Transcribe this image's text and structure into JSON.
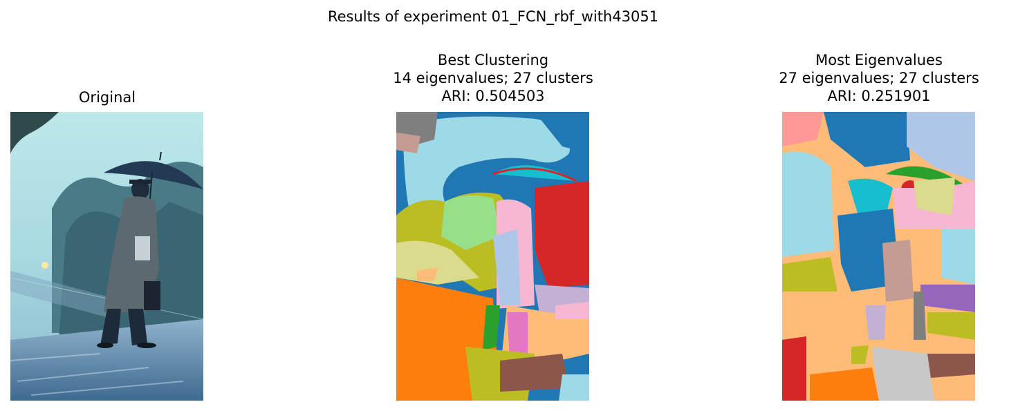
{
  "figure": {
    "suptitle": "Results of experiment 01_FCN_rbf_with43051"
  },
  "panels": [
    {
      "title_lines": [
        "Original"
      ],
      "image": "photo-man-with-umbrella-on-rainy-platform"
    },
    {
      "title_lines": [
        "Best Clustering",
        "14 eigenvalues; 27 clusters",
        "ARI: 0.504503"
      ],
      "image": "segmentation-map-best-clustering"
    },
    {
      "title_lines": [
        "Most Eigenvalues",
        "27 eigenvalues; 27 clusters",
        "ARI: 0.251901"
      ],
      "image": "segmentation-map-most-eigenvalues"
    }
  ],
  "colors": {
    "tab_blue": "#1f77b4",
    "tab_lightblue": "#aec7e8",
    "tab_orange": "#ff7f0e",
    "tab_lightorange": "#ffbb78",
    "tab_green": "#2ca02c",
    "tab_lightgreen": "#98df8a",
    "tab_red": "#d62728",
    "tab_pink": "#ff9896",
    "tab_purple": "#9467bd",
    "tab_lavender": "#c5b0d5",
    "tab_brown": "#8c564b",
    "tab_tan": "#c49c94",
    "tab_magenta": "#e377c2",
    "tab_lightpink": "#f7b6d2",
    "tab_gray": "#7f7f7f",
    "tab_lightgray": "#c7c7c7",
    "tab_olive": "#bcbd22",
    "tab_khaki": "#dbdb8d",
    "tab_cyan": "#17becf",
    "tab_lightcyan": "#9edae5"
  }
}
